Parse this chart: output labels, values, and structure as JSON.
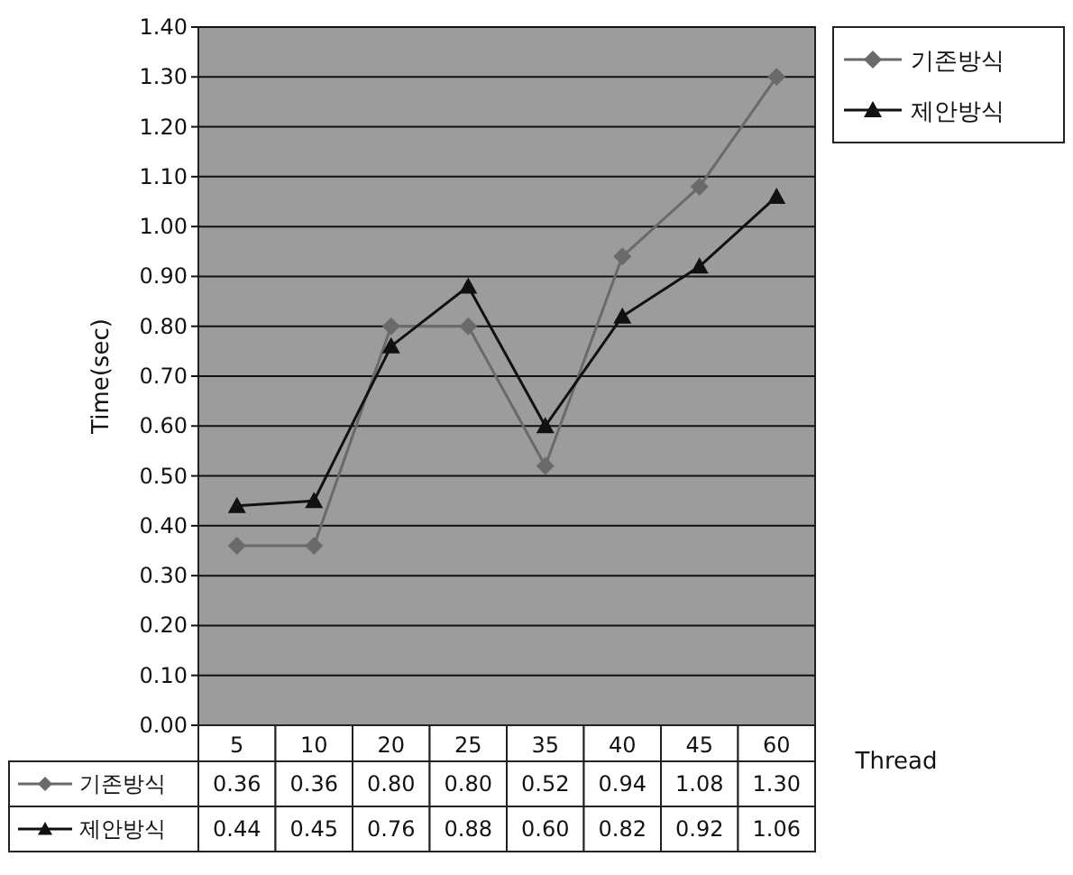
{
  "chart_data": {
    "type": "line",
    "ylabel": "Time(sec)",
    "xlabel": "Thread",
    "categories": [
      "5",
      "10",
      "20",
      "25",
      "35",
      "40",
      "45",
      "60"
    ],
    "series": [
      {
        "name": "기존방식",
        "color": "#6a6a6a",
        "marker": "diamond",
        "values": [
          0.36,
          0.36,
          0.8,
          0.8,
          0.52,
          0.94,
          1.08,
          1.3
        ],
        "value_labels": [
          "0.36",
          "0.36",
          "0.80",
          "0.80",
          "0.52",
          "0.94",
          "1.08",
          "1.30"
        ]
      },
      {
        "name": "제안방식",
        "color": "#111111",
        "marker": "triangle",
        "values": [
          0.44,
          0.45,
          0.76,
          0.88,
          0.6,
          0.82,
          0.92,
          1.06
        ],
        "value_labels": [
          "0.44",
          "0.45",
          "0.76",
          "0.88",
          "0.60",
          "0.82",
          "0.92",
          "1.06"
        ]
      }
    ],
    "ylim": [
      0,
      1.4
    ],
    "yticks": [
      {
        "value": 0,
        "label": "0.00"
      },
      {
        "value": 0.1,
        "label": "0.10"
      },
      {
        "value": 0.2,
        "label": "0.20"
      },
      {
        "value": 0.3,
        "label": "0.30"
      },
      {
        "value": 0.4,
        "label": "0.40"
      },
      {
        "value": 0.5,
        "label": "0.50"
      },
      {
        "value": 0.6,
        "label": "0.60"
      },
      {
        "value": 0.7,
        "label": "0.70"
      },
      {
        "value": 0.8,
        "label": "0.80"
      },
      {
        "value": 0.9,
        "label": "0.90"
      },
      {
        "value": 1.0,
        "label": "1.00"
      },
      {
        "value": 1.1,
        "label": "1.10"
      },
      {
        "value": 1.2,
        "label": "1.20"
      },
      {
        "value": 1.3,
        "label": "1.30"
      },
      {
        "value": 1.4,
        "label": "1.40"
      }
    ],
    "grid": "y",
    "legend": "right"
  }
}
